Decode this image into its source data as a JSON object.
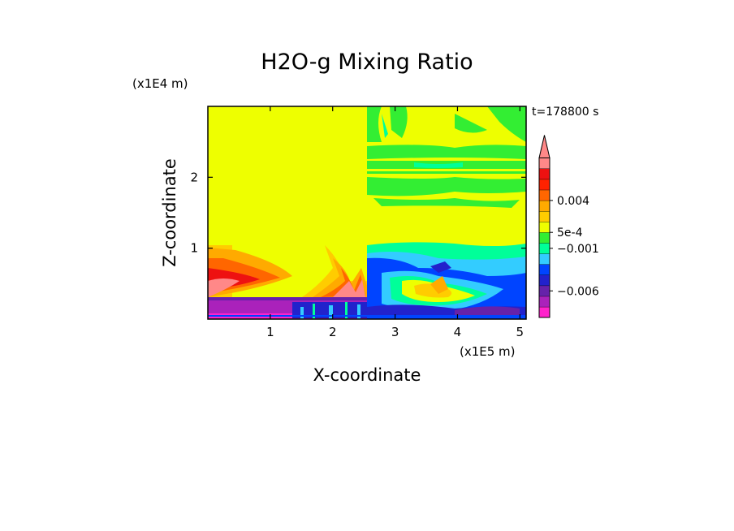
{
  "chart_data": {
    "type": "heatmap",
    "title": "H2O-g Mixing Ratio",
    "xlabel": "X-coordinate",
    "ylabel": "Z-coordinate",
    "x_unit": "(x1E5 m)",
    "y_unit": "(x1E4 m)",
    "time_label": "t=178800 s",
    "xlim": [
      0,
      5.1
    ],
    "ylim": [
      0,
      3.0
    ],
    "x_ticks": [
      {
        "value": 1,
        "label": "1"
      },
      {
        "value": 2,
        "label": "2"
      },
      {
        "value": 3,
        "label": "3"
      },
      {
        "value": 4,
        "label": "4"
      },
      {
        "value": 5,
        "label": "5"
      }
    ],
    "y_ticks": [
      {
        "value": 1,
        "label": "1"
      },
      {
        "value": 2,
        "label": "2"
      }
    ],
    "colorbar": {
      "colors": [
        "#ff22cc",
        "#aa22bb",
        "#6622aa",
        "#2222cc",
        "#0044ff",
        "#33ccff",
        "#00ff99",
        "#33ee33",
        "#eeff00",
        "#ffcc00",
        "#ffaa00",
        "#ff6600",
        "#ff2200",
        "#ee1111",
        "#ff8888"
      ],
      "labels": [
        {
          "text": "0.004",
          "level": 11
        },
        {
          "text": "5e-4",
          "level": 8
        },
        {
          "text": "−0.001",
          "level": 6.5
        },
        {
          "text": "−0.006",
          "level": 2.5
        }
      ],
      "extend_top": true
    }
  }
}
